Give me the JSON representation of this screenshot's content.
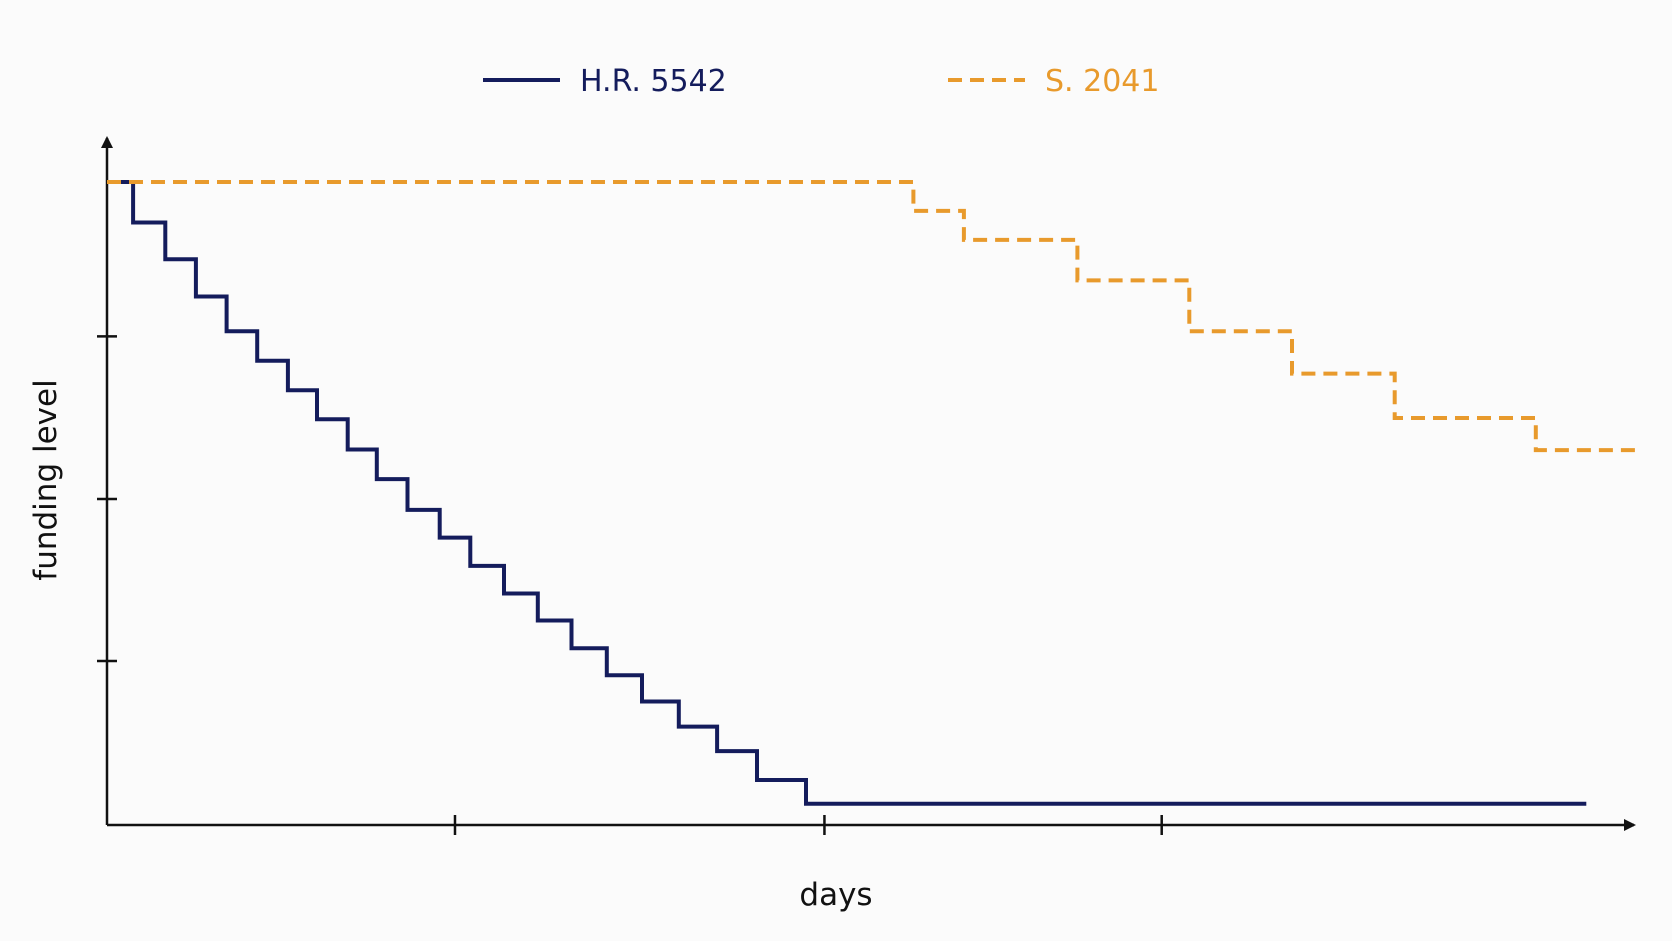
{
  "chart_data": {
    "type": "line",
    "step": true,
    "title": "",
    "xlabel": "days",
    "ylabel": "funding level",
    "xlim": [
      0,
      10
    ],
    "ylim": [
      0,
      10
    ],
    "xticks": [
      0,
      2.27,
      4.68,
      6.88
    ],
    "yticks": [
      0,
      2.55,
      5.07,
      7.6
    ],
    "legend": "top",
    "grid": false,
    "axis_color": "#111111",
    "series": [
      {
        "name": "H.R. 5542",
        "color": "#141c5c",
        "dash": "solid",
        "x": [
          0,
          0.17,
          0.38,
          0.58,
          0.78,
          0.98,
          1.18,
          1.37,
          1.57,
          1.76,
          1.96,
          2.17,
          2.37,
          2.59,
          2.81,
          3.03,
          3.26,
          3.49,
          3.73,
          3.98,
          4.24,
          4.56,
          9.65
        ],
        "y": [
          10,
          9.37,
          8.8,
          8.22,
          7.68,
          7.22,
          6.76,
          6.31,
          5.84,
          5.38,
          4.9,
          4.47,
          4.03,
          3.6,
          3.18,
          2.75,
          2.33,
          1.92,
          1.53,
          1.15,
          0.7,
          0.33,
          0.33
        ]
      },
      {
        "name": "S. 2041",
        "color": "#e89a2c",
        "dash": "dashed",
        "x": [
          0,
          5.26,
          5.59,
          6.33,
          7.06,
          7.73,
          8.4,
          9.32,
          10
        ],
        "y": [
          10,
          9.55,
          9.1,
          8.47,
          7.68,
          7.02,
          6.33,
          5.83,
          5.83
        ]
      }
    ]
  }
}
